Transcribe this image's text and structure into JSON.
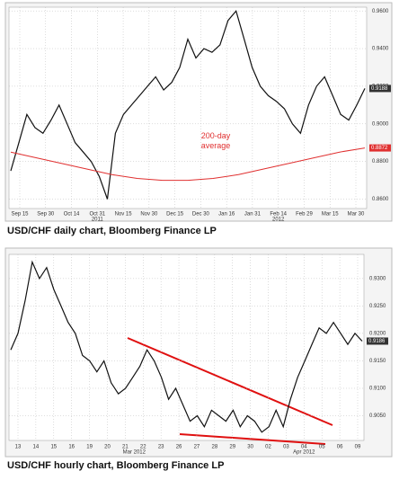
{
  "chart_data": [
    {
      "type": "line",
      "caption": "USD/CHF daily chart, Bloomberg Finance LP",
      "annotation": "200-day average",
      "xticks": [
        "Sep 15",
        "Sep 30",
        "Oct 14",
        "Oct 31",
        "Nov 15",
        "Nov 30",
        "Dec 15",
        "Dec 30",
        "Jan 16",
        "Jan 31",
        "Feb 14",
        "Feb 29",
        "Mar 15",
        "Mar 30"
      ],
      "xsublabels": [
        "2011",
        "2012"
      ],
      "ylim": [
        0.855,
        0.962
      ],
      "yticks": [
        {
          "value": 0.96,
          "label": "0.9600"
        },
        {
          "value": 0.94,
          "label": "0.9400"
        },
        {
          "value": 0.92,
          "label": "0.9200"
        },
        {
          "value": 0.9,
          "label": "0.9000"
        },
        {
          "value": 0.88,
          "label": "0.8800"
        },
        {
          "value": 0.86,
          "label": "0.8600"
        }
      ],
      "grid": true,
      "series": [
        {
          "name": "USD/CHF",
          "color": "#111111",
          "last_label": "0.9188",
          "values": [
            0.875,
            0.89,
            0.905,
            0.898,
            0.895,
            0.902,
            0.91,
            0.9,
            0.89,
            0.885,
            0.88,
            0.872,
            0.86,
            0.895,
            0.905,
            0.91,
            0.915,
            0.92,
            0.925,
            0.918,
            0.922,
            0.93,
            0.945,
            0.935,
            0.94,
            0.938,
            0.942,
            0.955,
            0.96,
            0.945,
            0.93,
            0.92,
            0.915,
            0.912,
            0.908,
            0.9,
            0.895,
            0.91,
            0.92,
            0.925,
            0.915,
            0.905,
            0.902,
            0.91,
            0.9188
          ]
        },
        {
          "name": "200-day average",
          "color": "#e03030",
          "last_label": "0.8872",
          "values": [
            0.885,
            0.882,
            0.879,
            0.876,
            0.873,
            0.871,
            0.87,
            0.87,
            0.871,
            0.873,
            0.876,
            0.879,
            0.882,
            0.885,
            0.8872
          ]
        }
      ]
    },
    {
      "type": "line",
      "caption": "USD/CHF hourly chart, Bloomberg Finance LP",
      "xticks": [
        "13",
        "14",
        "15",
        "16",
        "19",
        "20",
        "21",
        "22",
        "23",
        "26",
        "27",
        "28",
        "29",
        "30",
        "02",
        "03",
        "04",
        "05",
        "06",
        "09"
      ],
      "xsublabels": [
        "Mar 2012",
        "Apr 2012"
      ],
      "ylim": [
        0.9005,
        0.9344
      ],
      "yticks": [
        {
          "value": 0.93,
          "label": "0.9300"
        },
        {
          "value": 0.925,
          "label": "0.9250"
        },
        {
          "value": 0.92,
          "label": "0.9200"
        },
        {
          "value": 0.915,
          "label": "0.9150"
        },
        {
          "value": 0.91,
          "label": "0.9100"
        },
        {
          "value": 0.905,
          "label": "0.9050"
        }
      ],
      "grid": true,
      "series": [
        {
          "name": "USD/CHF",
          "color": "#111111",
          "last_label": "0.9186",
          "values": [
            0.917,
            0.92,
            0.926,
            0.933,
            0.93,
            0.932,
            0.928,
            0.925,
            0.922,
            0.92,
            0.916,
            0.915,
            0.913,
            0.915,
            0.911,
            0.909,
            0.91,
            0.912,
            0.914,
            0.917,
            0.915,
            0.912,
            0.908,
            0.91,
            0.907,
            0.904,
            0.905,
            0.903,
            0.906,
            0.905,
            0.904,
            0.906,
            0.903,
            0.905,
            0.904,
            0.902,
            0.903,
            0.906,
            0.903,
            0.908,
            0.912,
            0.915,
            0.918,
            0.921,
            0.92,
            0.922,
            0.92,
            0.918,
            0.92,
            0.9186
          ]
        }
      ]
    }
  ]
}
